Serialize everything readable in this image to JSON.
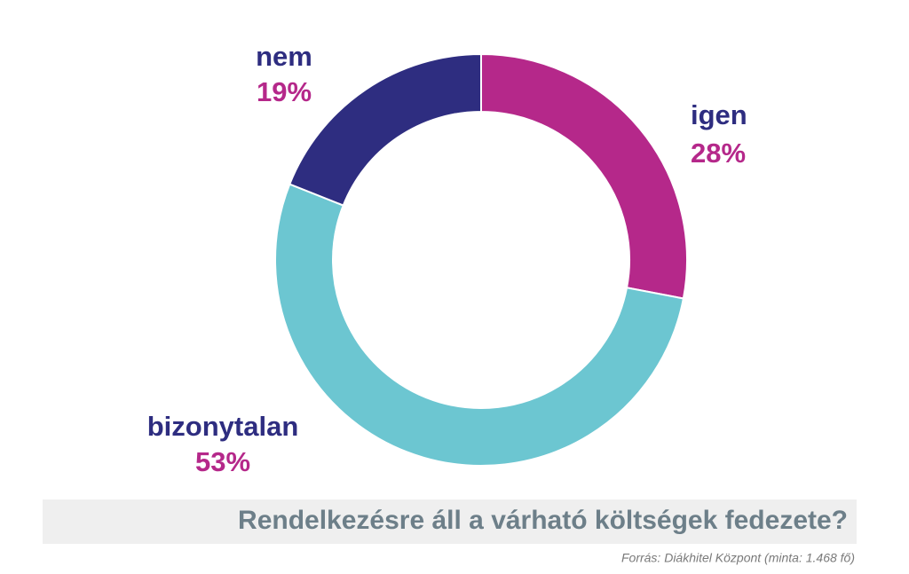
{
  "chart_data": {
    "type": "donut",
    "title": "Rendelkezésre áll a várható költségek fedezete?",
    "source": "Forrás: Diákhitel Központ (minta: 1.468 fő)",
    "categories": [
      "igen",
      "bizonytalan",
      "nem"
    ],
    "values": [
      28,
      53,
      19
    ],
    "value_labels": [
      "28%",
      "53%",
      "19%"
    ],
    "colors": [
      "#b5288a",
      "#6cc6d1",
      "#2e2d80"
    ],
    "label_name_color": "#2e2d80",
    "label_value_color": "#b5288a"
  }
}
